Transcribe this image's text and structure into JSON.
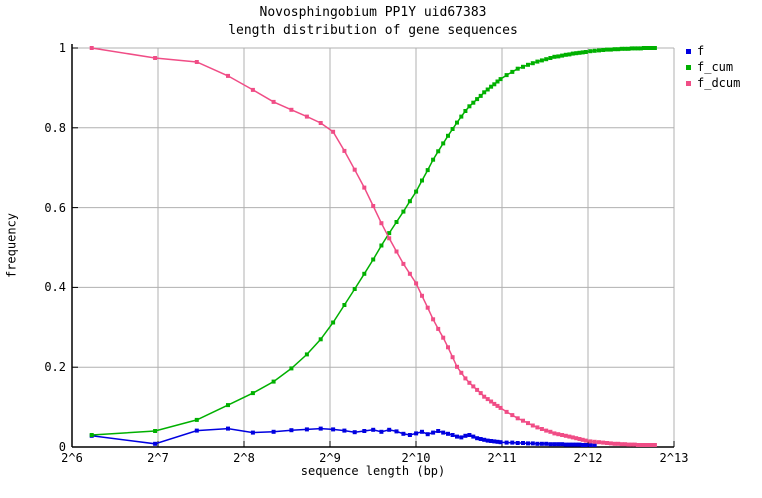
{
  "title": "Novosphingobium PP1Y uid67383",
  "subtitle": "length distribution of gene sequences",
  "chart_data": {
    "type": "line",
    "title": "Novosphingobium PP1Y uid67383",
    "subtitle": "length distribution of gene sequences",
    "xlabel": "sequence length (bp)",
    "ylabel": "frequency",
    "x_scale": "log2",
    "x_range_log2": [
      6,
      13
    ],
    "y_range": [
      0,
      1
    ],
    "x_tick_labels": [
      "2^6",
      "2^7",
      "2^8",
      "2^9",
      "2^10",
      "2^11",
      "2^12",
      "2^13"
    ],
    "y_tick_labels": [
      "0",
      "0.2",
      "0.4",
      "0.6",
      "0.8",
      "1"
    ],
    "grid": true,
    "legend_position": "outside-top-right",
    "colors": {
      "grid": "#b0b0b0",
      "axis": "#000000",
      "background": "#ffffff"
    },
    "series": [
      {
        "name": "f",
        "color": "#0000e0",
        "marker": "square",
        "x_bp": [
          75,
          125,
          175,
          225,
          275,
          325,
          375,
          425,
          475,
          525,
          575,
          625,
          675,
          725,
          775,
          825,
          875,
          925,
          975,
          1025,
          1075,
          1125,
          1175,
          1225,
          1275,
          1325,
          1375,
          1425,
          1475,
          1525,
          1575,
          1625,
          1675,
          1725,
          1775,
          1825,
          1875,
          1925,
          1975,
          2025,
          2125,
          2225,
          2325,
          2425,
          2525,
          2625,
          2725,
          2825,
          2925,
          3025,
          3125,
          3225,
          3325,
          3425,
          3525,
          3625,
          3725,
          3825,
          3925,
          4025,
          4175,
          4325
        ],
        "y": [
          0.028,
          0.008,
          0.041,
          0.046,
          0.036,
          0.038,
          0.042,
          0.044,
          0.046,
          0.044,
          0.041,
          0.037,
          0.04,
          0.043,
          0.038,
          0.043,
          0.039,
          0.033,
          0.03,
          0.034,
          0.038,
          0.032,
          0.036,
          0.04,
          0.036,
          0.033,
          0.03,
          0.026,
          0.024,
          0.028,
          0.03,
          0.026,
          0.022,
          0.02,
          0.018,
          0.016,
          0.015,
          0.014,
          0.013,
          0.012,
          0.011,
          0.011,
          0.01,
          0.01,
          0.009,
          0.009,
          0.008,
          0.008,
          0.008,
          0.007,
          0.007,
          0.007,
          0.007,
          0.006,
          0.006,
          0.006,
          0.006,
          0.006,
          0.005,
          0.005,
          0.005,
          0.005
        ]
      },
      {
        "name": "f_cum",
        "color": "#00b000",
        "marker": "square",
        "x_bp": [
          75,
          125,
          175,
          225,
          275,
          325,
          375,
          425,
          475,
          525,
          575,
          625,
          675,
          725,
          775,
          825,
          875,
          925,
          975,
          1025,
          1075,
          1125,
          1175,
          1225,
          1275,
          1325,
          1375,
          1425,
          1475,
          1525,
          1575,
          1625,
          1675,
          1725,
          1775,
          1825,
          1875,
          1925,
          1975,
          2025,
          2125,
          2225,
          2325,
          2425,
          2525,
          2625,
          2725,
          2825,
          2925,
          3025,
          3125,
          3225,
          3325,
          3425,
          3525,
          3625,
          3725,
          3825,
          3925,
          4025,
          4175,
          4325,
          4475,
          4625,
          4775,
          4925,
          5075,
          5225,
          5375,
          5525,
          5675,
          5825,
          5975,
          6125,
          6275,
          6425,
          6575,
          6725,
          6875,
          7025
        ],
        "y": [
          0.03,
          0.04,
          0.068,
          0.105,
          0.135,
          0.164,
          0.197,
          0.232,
          0.27,
          0.312,
          0.356,
          0.396,
          0.434,
          0.47,
          0.505,
          0.536,
          0.564,
          0.59,
          0.616,
          0.64,
          0.668,
          0.694,
          0.72,
          0.741,
          0.761,
          0.78,
          0.797,
          0.813,
          0.828,
          0.842,
          0.854,
          0.863,
          0.872,
          0.88,
          0.889,
          0.896,
          0.903,
          0.909,
          0.916,
          0.922,
          0.932,
          0.94,
          0.948,
          0.953,
          0.958,
          0.962,
          0.966,
          0.969,
          0.972,
          0.975,
          0.978,
          0.979,
          0.981,
          0.983,
          0.984,
          0.986,
          0.987,
          0.988,
          0.989,
          0.99,
          0.992,
          0.993,
          0.994,
          0.995,
          0.996,
          0.996,
          0.997,
          0.997,
          0.998,
          0.998,
          0.998,
          0.999,
          0.999,
          0.999,
          0.999,
          1.0,
          1.0,
          1.0,
          1.0,
          1.0
        ]
      },
      {
        "name": "f_dcum",
        "color": "#f04d86",
        "marker": "square",
        "x_bp": [
          75,
          125,
          175,
          225,
          275,
          325,
          375,
          425,
          475,
          525,
          575,
          625,
          675,
          725,
          775,
          825,
          875,
          925,
          975,
          1025,
          1075,
          1125,
          1175,
          1225,
          1275,
          1325,
          1375,
          1425,
          1475,
          1525,
          1575,
          1625,
          1675,
          1725,
          1775,
          1825,
          1875,
          1925,
          1975,
          2025,
          2125,
          2225,
          2325,
          2425,
          2525,
          2625,
          2725,
          2825,
          2925,
          3025,
          3125,
          3225,
          3325,
          3425,
          3525,
          3625,
          3725,
          3825,
          3925,
          4025,
          4175,
          4325,
          4475,
          4625,
          4775,
          4925,
          5075,
          5225,
          5375,
          5525,
          5675,
          5825,
          5975,
          6125,
          6275,
          6425,
          6575,
          6725,
          6875,
          7025
        ],
        "y": [
          1.0,
          0.975,
          0.965,
          0.93,
          0.895,
          0.865,
          0.845,
          0.828,
          0.812,
          0.79,
          0.742,
          0.695,
          0.65,
          0.604,
          0.561,
          0.523,
          0.49,
          0.459,
          0.434,
          0.41,
          0.379,
          0.349,
          0.32,
          0.296,
          0.274,
          0.25,
          0.225,
          0.201,
          0.186,
          0.172,
          0.161,
          0.152,
          0.143,
          0.135,
          0.126,
          0.12,
          0.114,
          0.108,
          0.103,
          0.098,
          0.088,
          0.08,
          0.072,
          0.066,
          0.06,
          0.054,
          0.049,
          0.045,
          0.041,
          0.038,
          0.034,
          0.032,
          0.03,
          0.028,
          0.026,
          0.024,
          0.022,
          0.02,
          0.018,
          0.016,
          0.014,
          0.013,
          0.012,
          0.011,
          0.01,
          0.009,
          0.008,
          0.008,
          0.007,
          0.007,
          0.006,
          0.006,
          0.006,
          0.005,
          0.005,
          0.005,
          0.005,
          0.005,
          0.005,
          0.005
        ]
      }
    ]
  }
}
